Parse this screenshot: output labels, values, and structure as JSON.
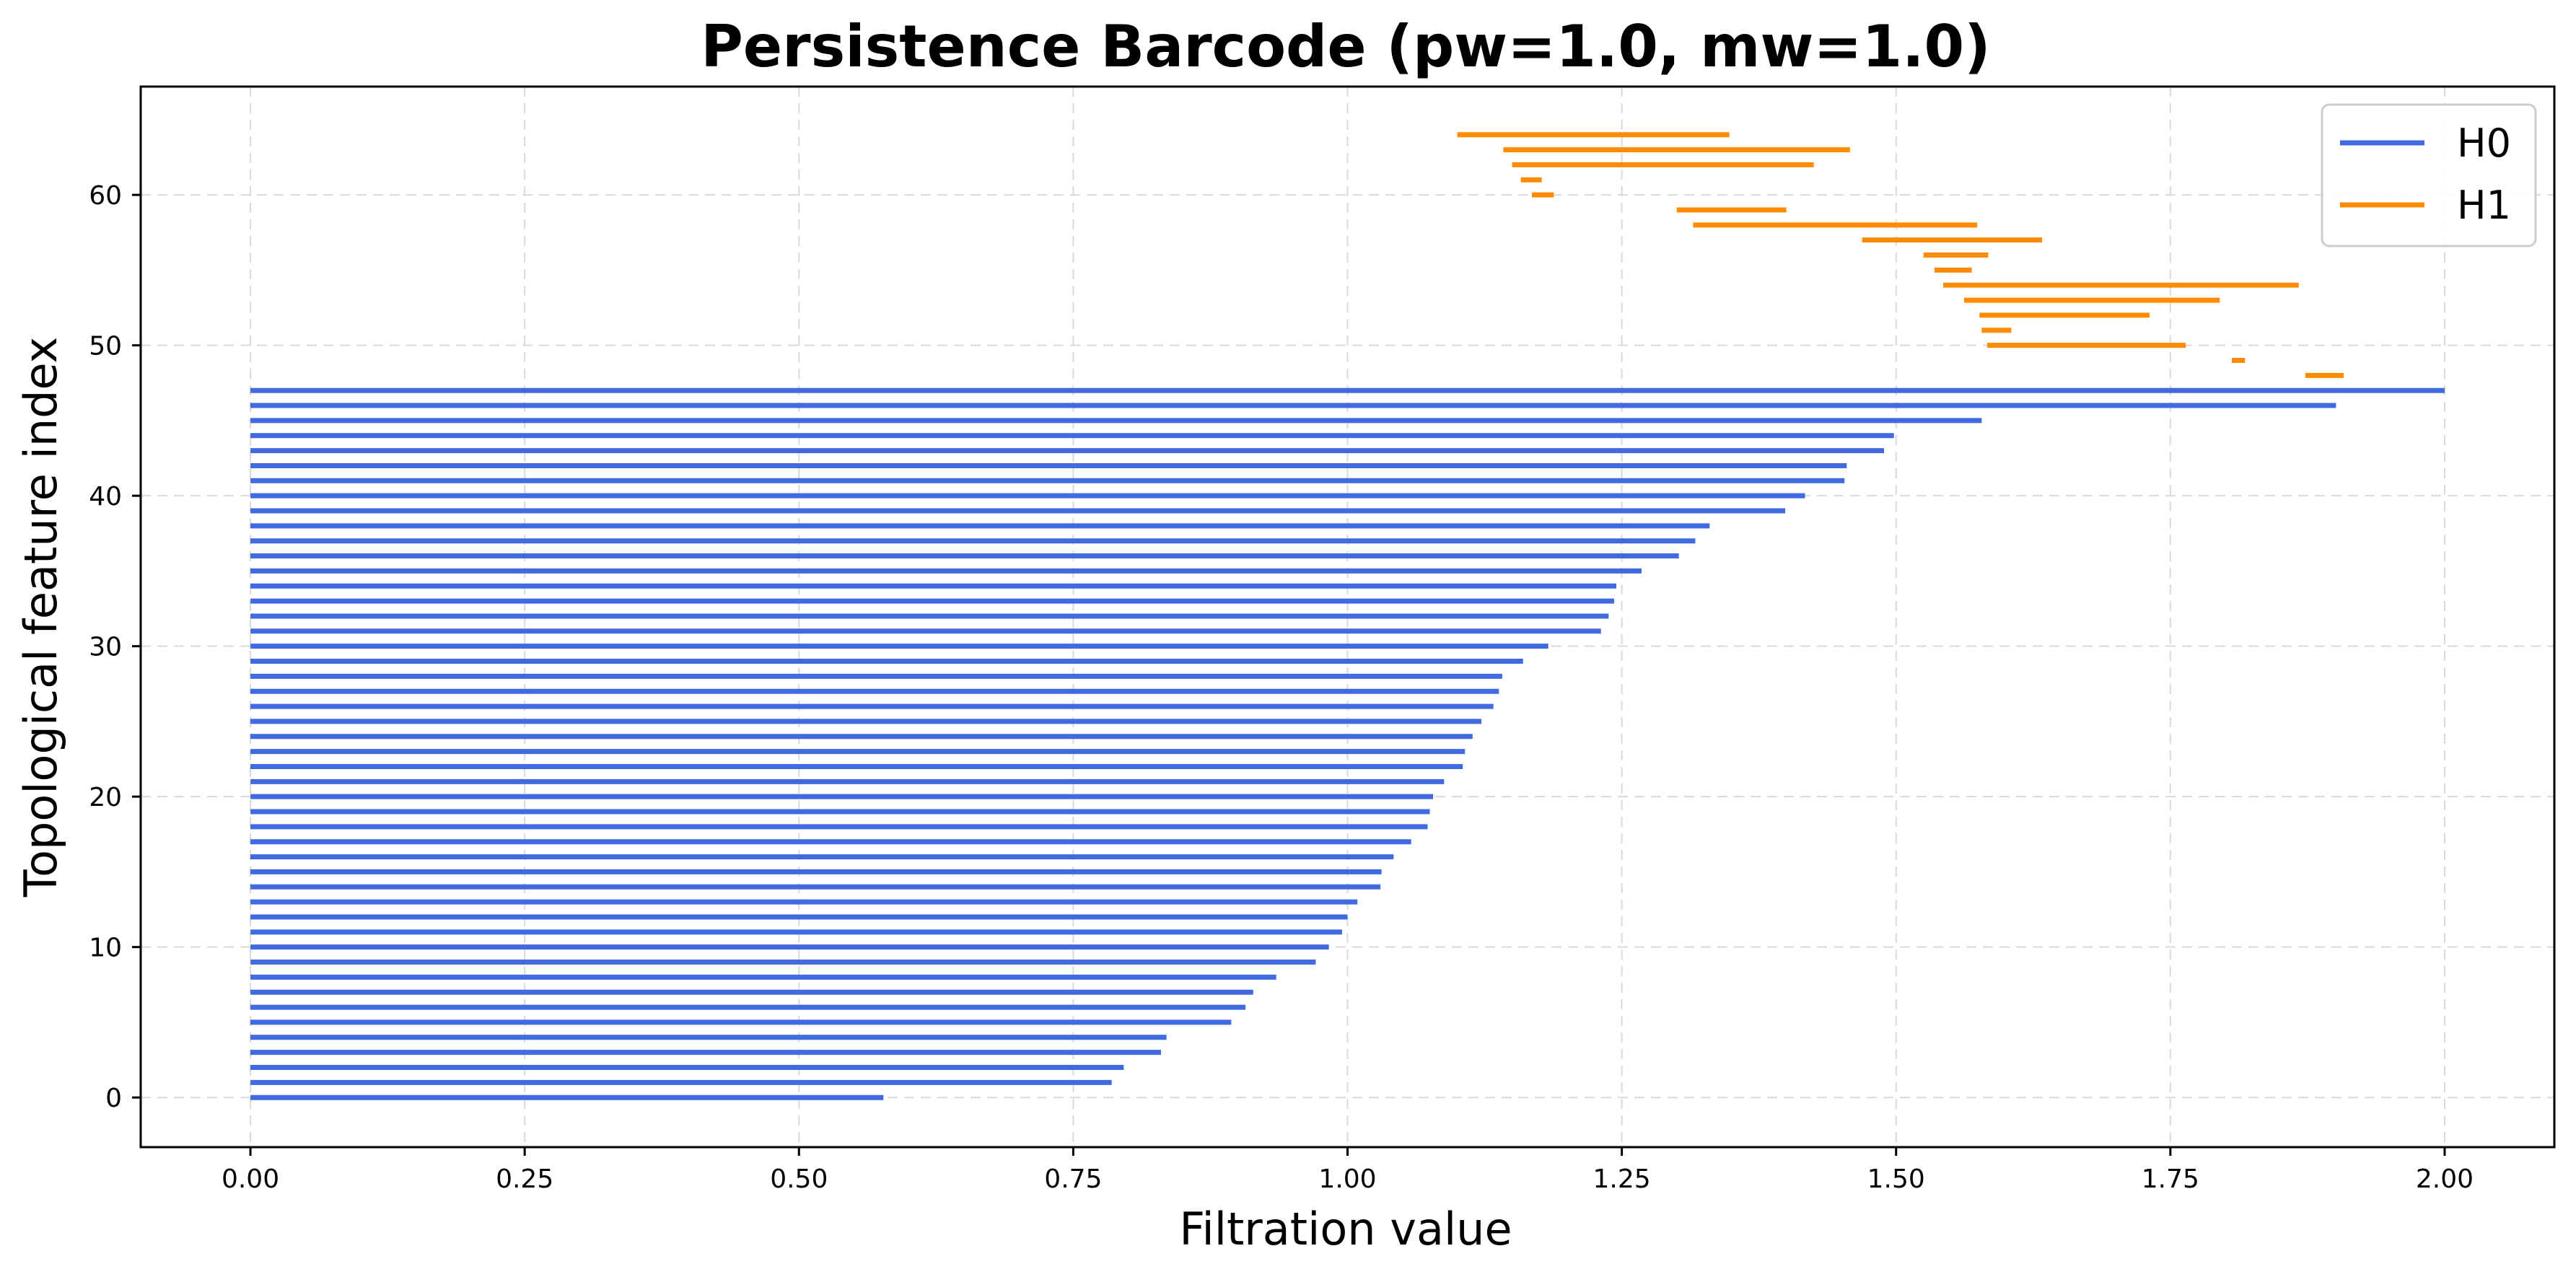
{
  "chart_data": {
    "type": "barcode",
    "title": "Persistence Barcode (pw=1.0, mw=1.0)",
    "xlabel": "Filtration value",
    "ylabel": "Topological feature index",
    "xlim": [
      -0.1,
      2.1
    ],
    "ylim": [
      -3.3,
      67.2
    ],
    "xticks": [
      0.0,
      0.25,
      0.5,
      0.75,
      1.0,
      1.25,
      1.5,
      1.75,
      2.0
    ],
    "xtick_labels": [
      "0.00",
      "0.25",
      "0.50",
      "0.75",
      "1.00",
      "1.25",
      "1.50",
      "1.75",
      "2.00"
    ],
    "yticks": [
      0,
      10,
      20,
      30,
      40,
      50,
      60
    ],
    "ytick_labels": [
      "0",
      "10",
      "20",
      "30",
      "40",
      "50",
      "60"
    ],
    "grid": true,
    "legend_position": "top-right",
    "series": [
      {
        "name": "H0",
        "color": "#4169e1",
        "bars": [
          [
            0,
            0.0,
            0.577
          ],
          [
            1,
            0.0,
            0.785
          ],
          [
            2,
            0.0,
            0.796
          ],
          [
            3,
            0.0,
            0.83
          ],
          [
            4,
            0.0,
            0.835
          ],
          [
            5,
            0.0,
            0.894
          ],
          [
            6,
            0.0,
            0.907
          ],
          [
            7,
            0.0,
            0.914
          ],
          [
            8,
            0.0,
            0.935
          ],
          [
            9,
            0.0,
            0.971
          ],
          [
            10,
            0.0,
            0.983
          ],
          [
            11,
            0.0,
            0.995
          ],
          [
            12,
            0.0,
            1.0
          ],
          [
            13,
            0.0,
            1.009
          ],
          [
            14,
            0.0,
            1.03
          ],
          [
            15,
            0.0,
            1.031
          ],
          [
            16,
            0.0,
            1.042
          ],
          [
            17,
            0.0,
            1.058
          ],
          [
            18,
            0.0,
            1.073
          ],
          [
            19,
            0.0,
            1.075
          ],
          [
            20,
            0.0,
            1.078
          ],
          [
            21,
            0.0,
            1.088
          ],
          [
            22,
            0.0,
            1.105
          ],
          [
            23,
            0.0,
            1.107
          ],
          [
            24,
            0.0,
            1.114
          ],
          [
            25,
            0.0,
            1.122
          ],
          [
            26,
            0.0,
            1.133
          ],
          [
            27,
            0.0,
            1.138
          ],
          [
            28,
            0.0,
            1.141
          ],
          [
            29,
            0.0,
            1.16
          ],
          [
            30,
            0.0,
            1.183
          ],
          [
            31,
            0.0,
            1.231
          ],
          [
            32,
            0.0,
            1.238
          ],
          [
            33,
            0.0,
            1.243
          ],
          [
            34,
            0.0,
            1.245
          ],
          [
            35,
            0.0,
            1.268
          ],
          [
            36,
            0.0,
            1.302
          ],
          [
            37,
            0.0,
            1.317
          ],
          [
            38,
            0.0,
            1.33
          ],
          [
            39,
            0.0,
            1.399
          ],
          [
            40,
            0.0,
            1.417
          ],
          [
            41,
            0.0,
            1.453
          ],
          [
            42,
            0.0,
            1.455
          ],
          [
            43,
            0.0,
            1.489
          ],
          [
            44,
            0.0,
            1.498
          ],
          [
            45,
            0.0,
            1.578
          ],
          [
            46,
            0.0,
            1.901
          ],
          [
            47,
            0.0,
            2.0
          ]
        ]
      },
      {
        "name": "H1",
        "color": "#ff8c00",
        "bars": [
          [
            48,
            1.873,
            1.908
          ],
          [
            49,
            1.806,
            1.818
          ],
          [
            50,
            1.583,
            1.764
          ],
          [
            51,
            1.578,
            1.605
          ],
          [
            52,
            1.576,
            1.731
          ],
          [
            53,
            1.562,
            1.795
          ],
          [
            54,
            1.543,
            1.867
          ],
          [
            55,
            1.535,
            1.569
          ],
          [
            56,
            1.525,
            1.584
          ],
          [
            57,
            1.469,
            1.633
          ],
          [
            58,
            1.315,
            1.574
          ],
          [
            59,
            1.3,
            1.4
          ],
          [
            60,
            1.168,
            1.188
          ],
          [
            61,
            1.158,
            1.177
          ],
          [
            62,
            1.15,
            1.425
          ],
          [
            63,
            1.142,
            1.458
          ],
          [
            64,
            1.1,
            1.348
          ]
        ]
      }
    ]
  }
}
